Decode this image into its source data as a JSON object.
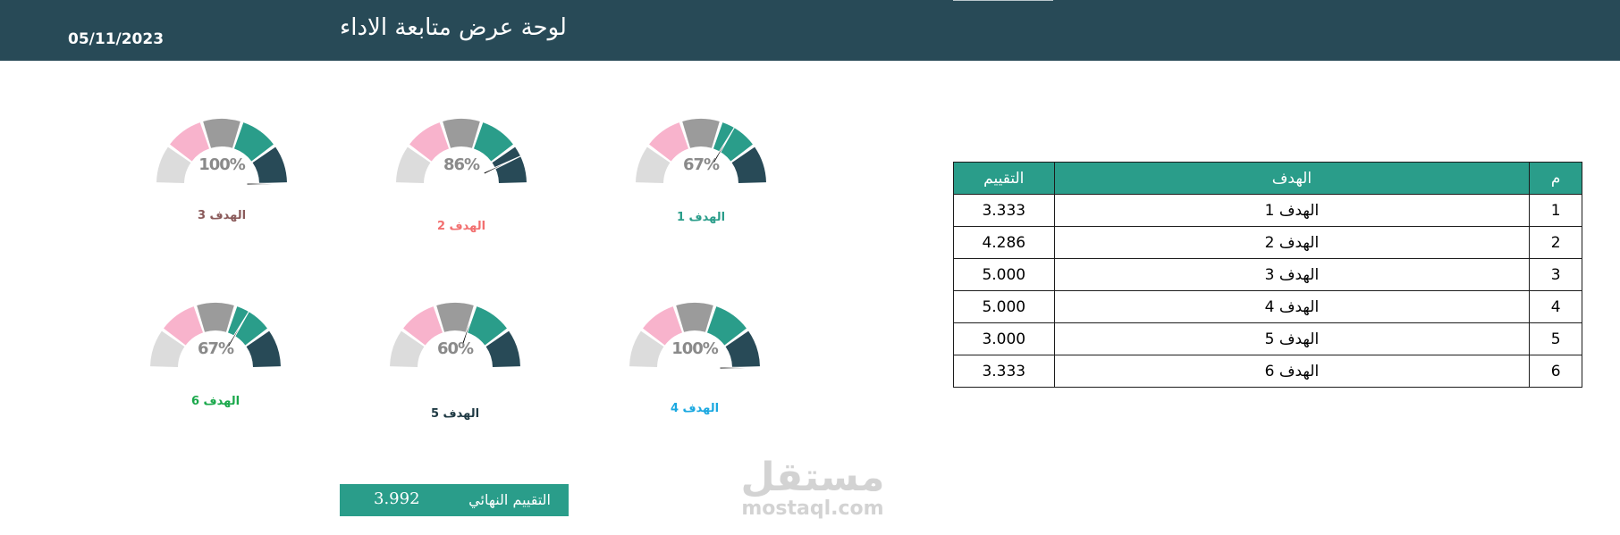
{
  "header": {
    "title": "لوحة عرض متابعة الاداء",
    "date": "05/11/2023"
  },
  "colors": {
    "header_bg": "#284a57",
    "teal": "#2a9d8a",
    "dark": "#284a57",
    "gray": "#9b9b9b",
    "pink": "#f8b3cc",
    "light_gray": "#dcdcdc",
    "needle": "#000000"
  },
  "gauges": [
    {
      "id": 1,
      "percent_label": "67%",
      "value_fraction": 0.67,
      "label": "الهدف 1",
      "label_color": "#2a9d8a"
    },
    {
      "id": 2,
      "percent_label": "86%",
      "value_fraction": 0.86,
      "label": "الهدف 2",
      "label_color": "#f26f6f"
    },
    {
      "id": 3,
      "percent_label": "100%",
      "value_fraction": 1.0,
      "label": "الهدف 3",
      "label_color": "#8a5a5a"
    },
    {
      "id": 4,
      "percent_label": "100%",
      "value_fraction": 1.0,
      "label": "الهدف 4",
      "label_color": "#1aa8e0"
    },
    {
      "id": 5,
      "percent_label": "60%",
      "value_fraction": 0.6,
      "label": "الهدف 5",
      "label_color": "#1f3a44"
    },
    {
      "id": 6,
      "percent_label": "67%",
      "value_fraction": 0.67,
      "label": "الهدف 6",
      "label_color": "#1aa84b"
    }
  ],
  "table": {
    "headers": {
      "index": "م",
      "goal": "الهدف",
      "score": "التقييم"
    },
    "rows": [
      {
        "index": "1",
        "goal": "الهدف 1",
        "score": "3.333"
      },
      {
        "index": "2",
        "goal": "الهدف 2",
        "score": "4.286"
      },
      {
        "index": "3",
        "goal": "الهدف 3",
        "score": "5.000"
      },
      {
        "index": "4",
        "goal": "الهدف 4",
        "score": "5.000"
      },
      {
        "index": "5",
        "goal": "الهدف 5",
        "score": "3.000"
      },
      {
        "index": "6",
        "goal": "الهدف 6",
        "score": "3.333"
      }
    ]
  },
  "final": {
    "label": "التقييم النهائي",
    "value": "3.992"
  },
  "watermark": {
    "arabic": "مستقل",
    "latin": "mostaql.com"
  }
}
